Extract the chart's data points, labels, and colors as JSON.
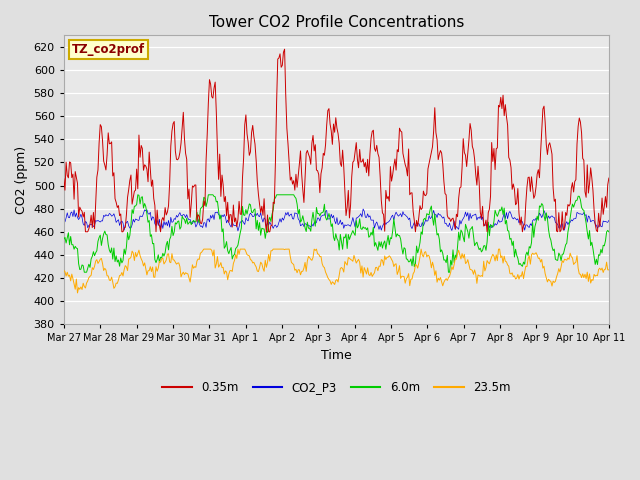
{
  "title": "Tower CO2 Profile Concentrations",
  "xlabel": "Time",
  "ylabel": "CO2 (ppm)",
  "ylim": [
    380,
    630
  ],
  "yticks": [
    380,
    400,
    420,
    440,
    460,
    480,
    500,
    520,
    540,
    560,
    580,
    600,
    620
  ],
  "fig_width": 6.4,
  "fig_height": 4.8,
  "dpi": 100,
  "bg_color": "#e0e0e0",
  "plot_bg_color": "#e8e8e8",
  "series": [
    "0.35m",
    "CO2_P3",
    "6.0m",
    "23.5m"
  ],
  "colors": [
    "#cc0000",
    "#0000dd",
    "#00cc00",
    "#ffaa00"
  ],
  "legend_label": "TZ_co2prof",
  "legend_fg": "#8b0000",
  "legend_bg": "#ffffcc",
  "legend_border": "#ccaa00",
  "x_tick_labels": [
    "Mar 27",
    "Mar 28",
    "Mar 29",
    "Mar 30",
    "Mar 31",
    "Apr 1",
    "Apr 2",
    "Apr 3",
    "Apr 4",
    "Apr 5",
    "Apr 6",
    "Apr 7",
    "Apr 8",
    "Apr 9",
    "Apr 10",
    "Apr 11"
  ],
  "n_points": 480
}
